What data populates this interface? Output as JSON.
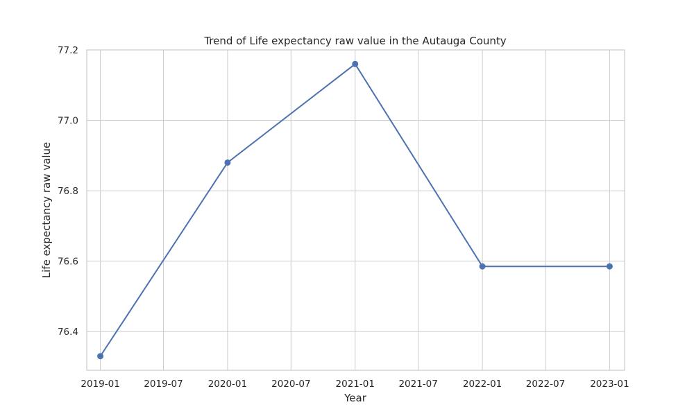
{
  "chart_data": {
    "type": "line",
    "title": "Trend of Life expectancy raw value in the Autauga County",
    "xlabel": "Year",
    "ylabel": "Life expectancy raw value",
    "x_tick_labels": [
      "2019-01",
      "2019-07",
      "2020-01",
      "2020-07",
      "2021-01",
      "2021-07",
      "2022-01",
      "2022-07",
      "2023-01"
    ],
    "y_tick_labels": [
      "76.4",
      "76.6",
      "76.8",
      "77.0",
      "77.2"
    ],
    "x": [
      "2019-01",
      "2020-01",
      "2021-01",
      "2022-01",
      "2023-01"
    ],
    "series": [
      {
        "values": [
          76.33,
          76.88,
          77.16,
          76.585,
          76.585
        ]
      }
    ],
    "xlim": [
      "2018-11-23",
      "2023-02-13"
    ],
    "ylim": [
      76.29,
      77.2
    ],
    "grid": true,
    "colors": {
      "series": "#4c72b0"
    }
  }
}
